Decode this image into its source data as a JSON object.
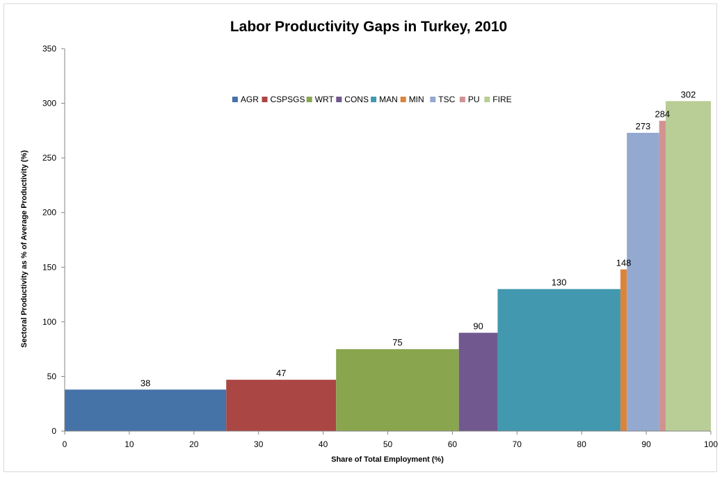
{
  "chart_data": {
    "type": "bar",
    "title": "Labor Productivity Gaps in Turkey, 2010",
    "xlabel": "Share of Total Employment (%)",
    "ylabel": "Sectoral Productivity as % of Average Productivity (%)",
    "xlim": [
      0,
      100
    ],
    "ylim": [
      0,
      350
    ],
    "xticks": [
      0,
      10,
      20,
      30,
      40,
      50,
      60,
      70,
      80,
      90,
      100
    ],
    "yticks": [
      0,
      50,
      100,
      150,
      200,
      250,
      300,
      350
    ],
    "grid": false,
    "legend_position": "top-center",
    "series": [
      {
        "name": "AGR",
        "x_start": 0,
        "x_end": 25,
        "value": 38,
        "color": "#4572A7"
      },
      {
        "name": "CSPSGS",
        "x_start": 25,
        "x_end": 42,
        "value": 47,
        "color": "#AA4643"
      },
      {
        "name": "WRT",
        "x_start": 42,
        "x_end": 61,
        "value": 75,
        "color": "#89A54E"
      },
      {
        "name": "CONS",
        "x_start": 61,
        "x_end": 67,
        "value": 90,
        "color": "#71588F"
      },
      {
        "name": "MAN",
        "x_start": 67,
        "x_end": 86,
        "value": 130,
        "color": "#4198AF"
      },
      {
        "name": "MIN",
        "x_start": 86,
        "x_end": 87,
        "value": 148,
        "color": "#DB843D"
      },
      {
        "name": "TSC",
        "x_start": 87,
        "x_end": 92,
        "value": 273,
        "color": "#93A9CF"
      },
      {
        "name": "PU",
        "x_start": 92,
        "x_end": 93,
        "value": 284,
        "color": "#D19392"
      },
      {
        "name": "FIRE",
        "x_start": 93,
        "x_end": 100,
        "value": 302,
        "color": "#B9CD96"
      }
    ]
  }
}
